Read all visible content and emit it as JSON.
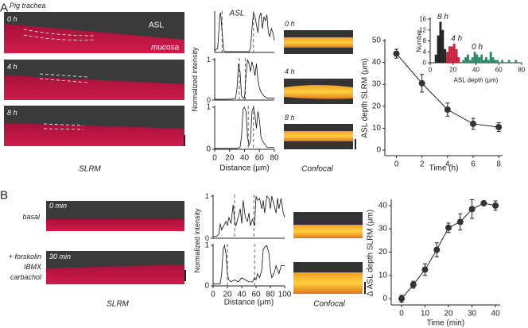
{
  "figure": {
    "panel_a": "A",
    "panel_b": "B",
    "subtitle": "Pig trachea",
    "slrm_a_labels": [
      "0 h",
      "4 h",
      "8 h"
    ],
    "asl": "ASL",
    "mucosa": "mucosa",
    "slrm_a": "SLRM",
    "profile_asl": "ASL",
    "confocal_a_labels": [
      "0 h",
      "4 h",
      "8 h"
    ],
    "confocal_a": "Confocal",
    "slrm_b_labels": [
      "0 min",
      "30 min"
    ],
    "basal": "basal",
    "treatment": [
      "+ forskolin",
      "IBMX",
      "carbachol"
    ],
    "slrm_b": "SLRM",
    "confocal_b": "Confocal"
  },
  "chart_data": [
    {
      "type": "line",
      "ylabel": "ASL depth SLRM (μm)",
      "xlabel": "Time (h)",
      "x": [
        0,
        2,
        4,
        6,
        8
      ],
      "xlim": [
        -0.9,
        8.3
      ],
      "ylim": [
        -2.5,
        50
      ],
      "xticks": [
        0,
        2,
        4,
        6,
        8
      ],
      "yticks": [
        0,
        10,
        20,
        30,
        40,
        50
      ],
      "markers": true,
      "series": [
        {
          "color": "#333333",
          "values": [
            44,
            30.5,
            18.5,
            12,
            10.5
          ],
          "errors": [
            2,
            4,
            3,
            2.5,
            2
          ]
        }
      ]
    },
    {
      "type": "histogram",
      "ylabel": "Number",
      "xlabel": "ASL depth (μm)",
      "xlim": [
        0,
        80
      ],
      "ylim": [
        0,
        16
      ],
      "xticks": [
        0,
        20,
        40,
        60,
        80
      ],
      "yticks": [
        0,
        4,
        8,
        12,
        16
      ],
      "series": [
        {
          "name": "8 h",
          "color": "#222222",
          "bins": [
            4,
            6,
            8,
            10,
            12,
            14
          ],
          "values": [
            3,
            10,
            15,
            12,
            5
          ]
        },
        {
          "name": "4 h",
          "color": "#c8213c",
          "bins": [
            14,
            16,
            18,
            20,
            22,
            24,
            26
          ],
          "values": [
            4,
            6,
            6,
            7,
            5,
            2
          ]
        },
        {
          "name": "0 h",
          "color": "#2e8b6a",
          "bins": [
            28,
            30,
            32,
            34,
            36,
            38,
            40,
            42,
            44,
            46,
            48,
            50,
            52,
            54,
            56,
            58,
            60,
            62,
            64,
            66,
            68,
            70,
            72,
            74,
            76
          ],
          "values": [
            1,
            2,
            3,
            1,
            2,
            4,
            3,
            2,
            3,
            1,
            2,
            1,
            4,
            2,
            1,
            1,
            0,
            1,
            0,
            0,
            1,
            0,
            0,
            1
          ]
        }
      ]
    },
    {
      "type": "line",
      "xlim": [
        0,
        80
      ],
      "ylim": [
        0,
        1
      ],
      "vlines": [
        10,
        52
      ],
      "x": [
        0,
        4,
        7,
        8,
        10,
        12,
        14,
        20,
        30,
        40,
        46,
        48,
        50,
        52,
        54,
        56,
        58,
        60,
        62,
        64,
        66,
        68,
        70,
        72,
        74,
        76,
        78,
        80
      ],
      "series": [
        {
          "color": "#111111",
          "values": [
            0.05,
            0.1,
            0.95,
            1,
            0.5,
            0.05,
            0.02,
            0.02,
            0.02,
            0.02,
            0.02,
            0.1,
            0.6,
            1,
            0.9,
            0.7,
            0.5,
            0.9,
            1,
            0.6,
            0.9,
            0.8,
            0.95,
            0.5,
            0.4,
            0.6,
            0.5,
            0.3
          ]
        }
      ]
    },
    {
      "type": "line",
      "ylabel": "Normalized intensity",
      "xlim": [
        0,
        80
      ],
      "ylim": [
        0,
        1
      ],
      "yticks": [
        0,
        1
      ],
      "vlines": [
        33,
        41
      ],
      "x": [
        0,
        10,
        20,
        28,
        30,
        32,
        34,
        36,
        38,
        40,
        42,
        44,
        46,
        48,
        50,
        52,
        54,
        56,
        58,
        60,
        62,
        64,
        66,
        70,
        75,
        80
      ],
      "series": [
        {
          "color": "#111111",
          "values": [
            0.02,
            0.02,
            0.02,
            0.05,
            0.3,
            0.9,
            0.7,
            0.1,
            0.05,
            0.05,
            0.6,
            1,
            0.9,
            0.7,
            0.95,
            0.8,
            0.6,
            0.9,
            0.5,
            0.3,
            0.2,
            0.15,
            0.1,
            0.05,
            0.05,
            0.05
          ]
        }
      ]
    },
    {
      "type": "line",
      "xlabel": "Distance (μm)",
      "xlim": [
        0,
        80
      ],
      "ylim": [
        0,
        1
      ],
      "xticks": [
        0,
        20,
        40,
        60,
        80
      ],
      "yticks": [
        0,
        1
      ],
      "vlines": [
        45,
        52
      ],
      "x": [
        0,
        10,
        20,
        30,
        34,
        36,
        38,
        40,
        42,
        44,
        46,
        48,
        50,
        52,
        54,
        56,
        58,
        60,
        62,
        64,
        66,
        68,
        70,
        75,
        80
      ],
      "series": [
        {
          "color": "#111111",
          "values": [
            0.02,
            0.02,
            0.02,
            0.02,
            0.05,
            0.3,
            0.95,
            1,
            0.9,
            0.3,
            0.1,
            0.2,
            0.9,
            1,
            0.8,
            0.5,
            0.9,
            0.7,
            0.3,
            0.2,
            0.15,
            0.1,
            0.05,
            0.05,
            0.05
          ]
        }
      ]
    },
    {
      "type": "line",
      "ylabel": "Normalized intensity",
      "xlim": [
        0,
        100
      ],
      "ylim": [
        0,
        1
      ],
      "yticks": [
        0,
        1
      ],
      "vlines": [
        30,
        57
      ],
      "x": [
        0,
        5,
        8,
        10,
        12,
        15,
        18,
        20,
        22,
        25,
        28,
        30,
        32,
        35,
        38,
        40,
        42,
        45,
        48,
        50,
        52,
        55,
        58,
        60,
        62,
        65,
        68,
        70,
        72,
        75,
        78,
        80,
        82,
        85,
        88,
        90,
        92,
        95,
        98,
        100
      ],
      "series": [
        {
          "color": "#111111",
          "values": [
            0.05,
            0.05,
            0.1,
            0.35,
            0.2,
            0.3,
            0.4,
            0.3,
            0.5,
            0.35,
            0.8,
            0.4,
            0.3,
            0.5,
            0.7,
            0.35,
            0.9,
            0.5,
            0.4,
            0.6,
            0.3,
            0.45,
            0.3,
            1,
            0.9,
            0.95,
            0.7,
            0.9,
            0.6,
            1,
            0.95,
            0.7,
            1,
            0.8,
            0.6,
            0.95,
            0.7,
            0.95,
            0.6,
            0.5
          ]
        }
      ]
    },
    {
      "type": "line",
      "xlabel": "Distance (μm)",
      "xlim": [
        0,
        100
      ],
      "ylim": [
        0,
        1
      ],
      "xticks": [
        0,
        20,
        40,
        60,
        80,
        100
      ],
      "yticks": [
        0,
        1
      ],
      "vlines": [
        20,
        58
      ],
      "x": [
        0,
        5,
        10,
        12,
        14,
        16,
        18,
        20,
        22,
        25,
        30,
        35,
        40,
        45,
        50,
        55,
        58,
        60,
        62,
        65,
        68,
        70,
        72,
        75,
        78,
        80,
        82,
        85,
        88,
        90,
        92,
        95,
        100
      ],
      "series": [
        {
          "color": "#111111",
          "values": [
            0.05,
            0.05,
            0.05,
            0.3,
            0.9,
            1,
            0.8,
            0.3,
            0.15,
            0.1,
            0.15,
            0.1,
            0.2,
            0.15,
            0.1,
            0.1,
            0.2,
            0.15,
            0.3,
            0.2,
            0.4,
            0.9,
            0.95,
            1,
            0.8,
            0.4,
            0.2,
            0.3,
            0.5,
            0.4,
            0.3,
            0.5,
            0.5
          ]
        }
      ]
    },
    {
      "type": "line",
      "ylabel": "Δ ASL depth SLRM (μm)",
      "xlabel": "Time (min)",
      "x": [
        0,
        5,
        10,
        15,
        20,
        25,
        30,
        35,
        40
      ],
      "xlim": [
        -4.4,
        42
      ],
      "ylim": [
        -2.7,
        42
      ],
      "xticks": [
        0,
        10,
        20,
        30,
        40
      ],
      "yticks": [
        0,
        10,
        20,
        30,
        40
      ],
      "markers": true,
      "series": [
        {
          "color": "#333333",
          "values": [
            0,
            6,
            12.5,
            21,
            30.5,
            33,
            38.5,
            41,
            40
          ],
          "errors": [
            1.5,
            1.5,
            2.5,
            3,
            2,
            3.5,
            4,
            1,
            2
          ]
        }
      ]
    }
  ]
}
